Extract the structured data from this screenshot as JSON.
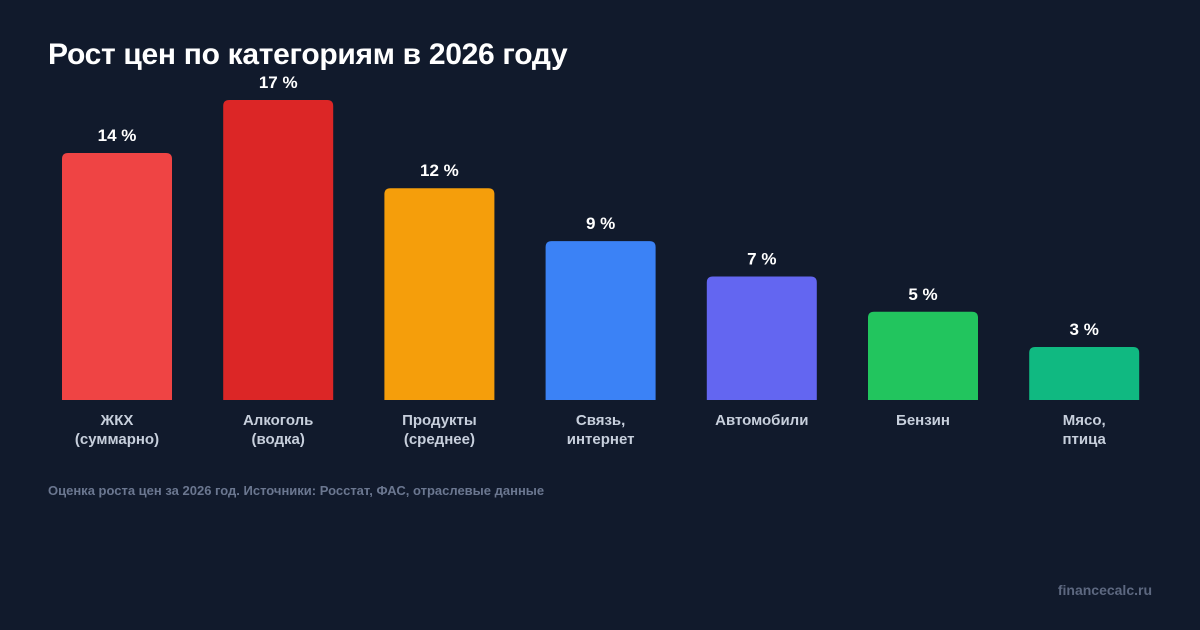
{
  "chart_data": {
    "type": "bar",
    "title": "Рост цен по категориям в 2026 году",
    "categories": [
      [
        "ЖКХ",
        "(суммарно)"
      ],
      [
        "Алкоголь",
        "(водка)"
      ],
      [
        "Продукты",
        "(среднее)"
      ],
      [
        "Связь,",
        "интернет"
      ],
      [
        "Автомобили"
      ],
      [
        "Бензин"
      ],
      [
        "Мясо,",
        "птица"
      ]
    ],
    "values": [
      14,
      17,
      12,
      9,
      7,
      5,
      3
    ],
    "value_labels": [
      "14 %",
      "17 %",
      "12 %",
      "9 %",
      "7 %",
      "5 %",
      "3 %"
    ],
    "unit": "%",
    "colors": [
      "#ef4444",
      "#dc2626",
      "#f59e0b",
      "#3b82f6",
      "#6366f1",
      "#22c55e",
      "#10b981"
    ],
    "ylim": [
      0,
      17
    ],
    "xlabel": "",
    "ylabel": "",
    "grid": false,
    "legend": "none"
  },
  "footnote": "Оценка роста цен за 2026 год. Источники: Росстат, ФАС, отраслевые данные",
  "watermark": "financecalc.ru",
  "colors": {
    "background": "#111a2c",
    "category_label": "#c7cfdc",
    "value_label": "#ffffff"
  }
}
